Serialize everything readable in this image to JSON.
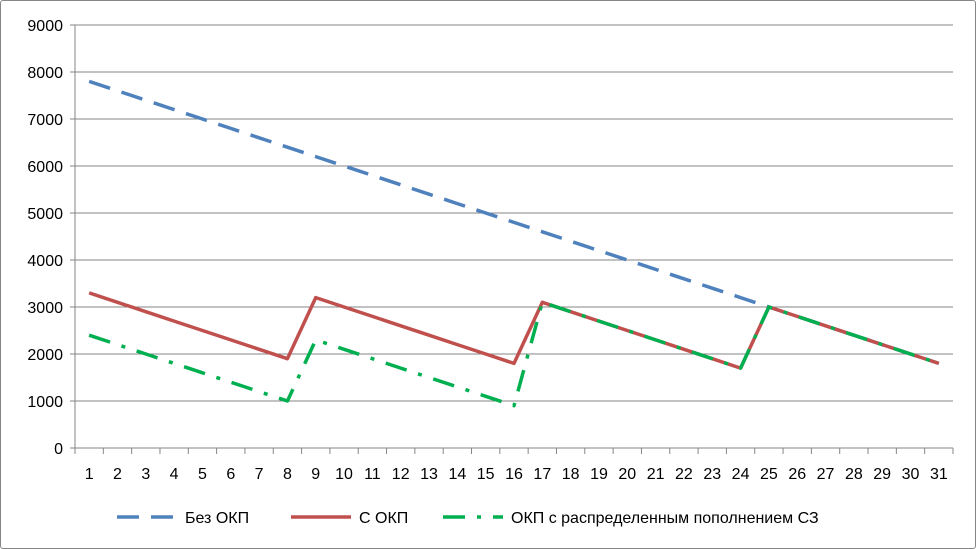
{
  "chart_data": {
    "type": "line",
    "title": "",
    "xlabel": "",
    "ylabel": "",
    "x": [
      1,
      2,
      3,
      4,
      5,
      6,
      7,
      8,
      9,
      10,
      11,
      12,
      13,
      14,
      15,
      16,
      17,
      18,
      19,
      20,
      21,
      22,
      23,
      24,
      25,
      26,
      27,
      28,
      29,
      30,
      31
    ],
    "xlim": [
      1,
      31
    ],
    "ylim": [
      0,
      9000
    ],
    "yticks": [
      0,
      1000,
      2000,
      3000,
      4000,
      5000,
      6000,
      7000,
      8000,
      9000
    ],
    "grid": "horizontal",
    "legend_position": "bottom",
    "series": [
      {
        "name": "Без ОКП",
        "color": "#4F81BD",
        "dash": "long-dash",
        "values": [
          7800,
          7600,
          7400,
          7200,
          7000,
          6800,
          6600,
          6400,
          6200,
          6000,
          5800,
          5600,
          5400,
          5200,
          5000,
          4800,
          4600,
          4400,
          4200,
          4000,
          3800,
          3600,
          3400,
          3200,
          3000,
          2800,
          2600,
          2400,
          2200,
          2000,
          1800
        ]
      },
      {
        "name": "С ОКП",
        "color": "#C0504D",
        "dash": "solid",
        "values": [
          3300,
          3100,
          2900,
          2700,
          2500,
          2300,
          2100,
          1900,
          3200,
          3000,
          2800,
          2600,
          2400,
          2200,
          2000,
          1800,
          3100,
          2900,
          2700,
          2500,
          2300,
          2100,
          1900,
          1700,
          3000,
          2800,
          2600,
          2400,
          2200,
          2000,
          1800
        ]
      },
      {
        "name": "ОКП с распределенным пополнением СЗ",
        "color": "#00B050",
        "dash": "dash-dot",
        "values": [
          2400,
          2200,
          2000,
          1800,
          1600,
          1400,
          1200,
          1000,
          2300,
          2100,
          1900,
          1700,
          1500,
          1300,
          1100,
          900,
          3100,
          2900,
          2700,
          2500,
          2300,
          2100,
          1900,
          1700,
          3000,
          2800,
          2600,
          2400,
          2200,
          2000,
          1800
        ]
      }
    ]
  }
}
